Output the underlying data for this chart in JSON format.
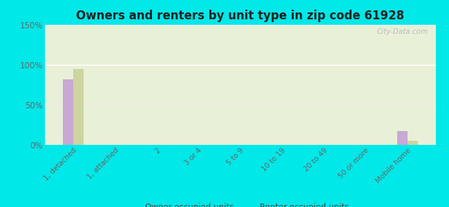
{
  "title": "Owners and renters by unit type in zip code 61928",
  "categories": [
    "1, detached",
    "1, attached",
    "2",
    "3 or 4",
    "5 to 9",
    "10 to 19",
    "20 to 49",
    "50 or more",
    "Mobile home"
  ],
  "owner_values": [
    82,
    0,
    0,
    0,
    0,
    0,
    0,
    0,
    17
  ],
  "renter_values": [
    95,
    0,
    0,
    0,
    0,
    0,
    0,
    0,
    5
  ],
  "owner_color": "#c9a8d4",
  "renter_color": "#ccd4a0",
  "background_outer": "#00e8e8",
  "background_inner_top": "#e8f0d8",
  "background_inner_bottom": "#d8ead0",
  "ylim": [
    0,
    150
  ],
  "yticks": [
    0,
    50,
    100,
    150
  ],
  "ytick_labels": [
    "0%",
    "50%",
    "100%",
    "150%"
  ],
  "legend_owner": "Owner occupied units",
  "legend_renter": "Renter occupied units",
  "bar_width": 0.25,
  "watermark": "City-Data.com"
}
